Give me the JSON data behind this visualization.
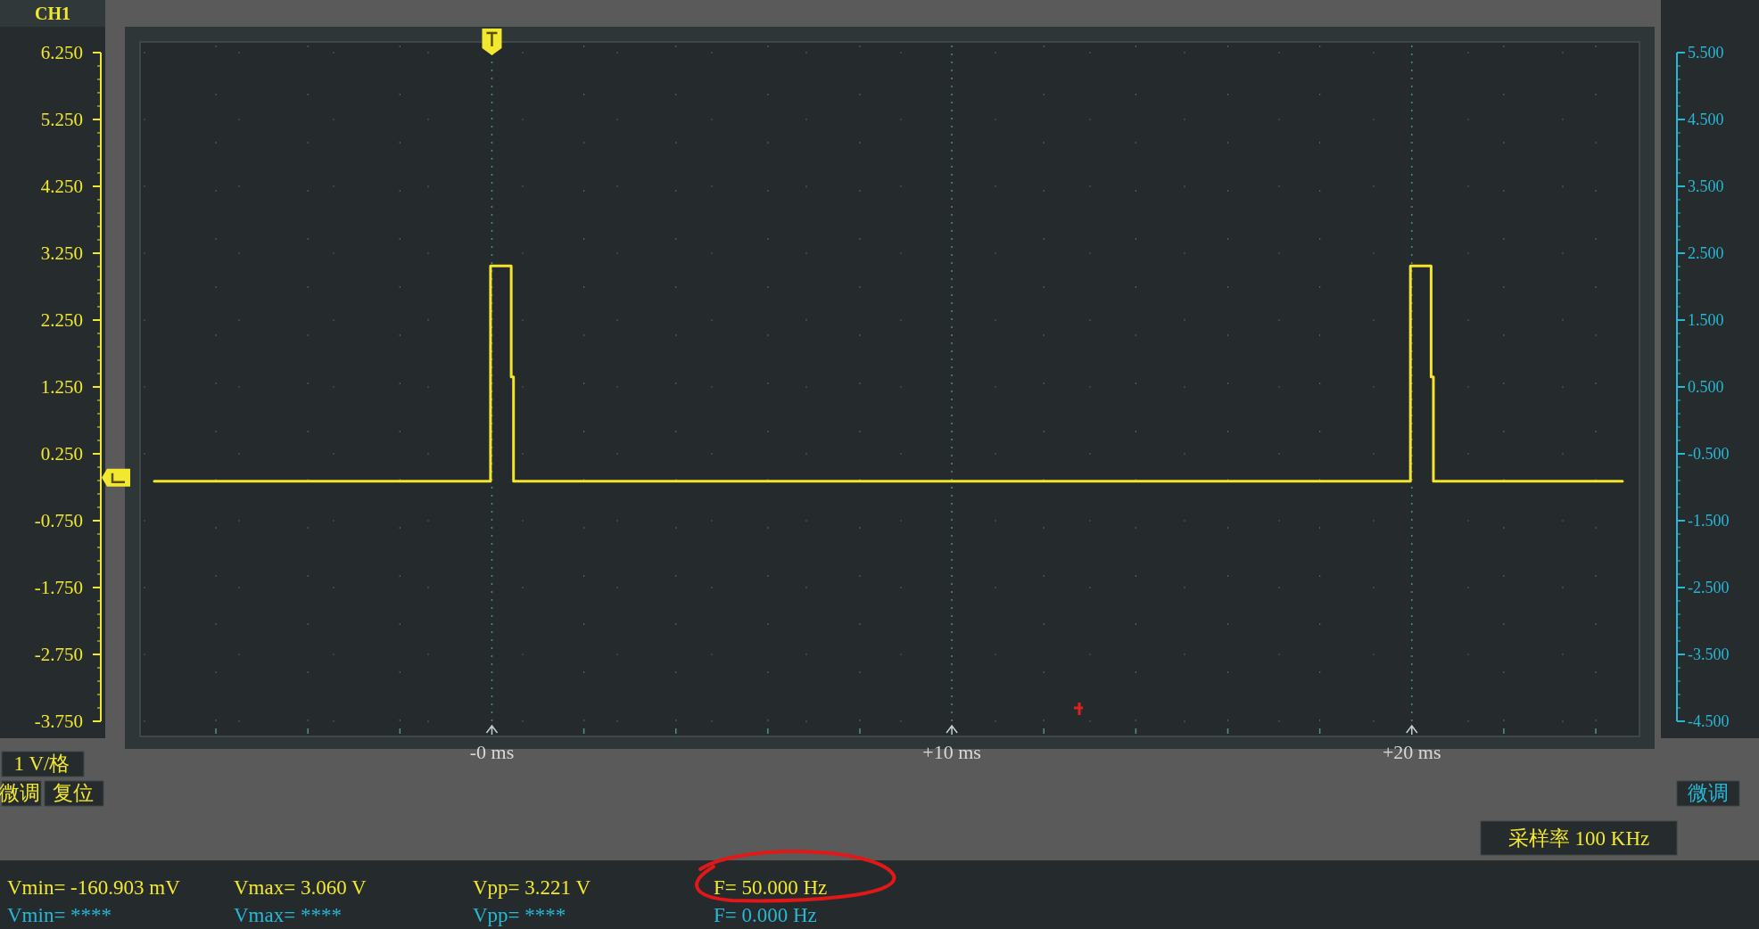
{
  "chart_data": {
    "type": "line",
    "ylabel": "CH1",
    "xlim": [
      -7.65,
      24.95
    ],
    "ylim": [
      -3.75,
      6.25
    ],
    "y2lim": [
      -4.5,
      5.5
    ],
    "xticks": [
      {
        "value": -6,
        "label": null
      },
      {
        "value": -4,
        "label": null
      },
      {
        "value": -2,
        "label": null
      },
      {
        "value": 0,
        "label": "-0 ms"
      },
      {
        "value": 2,
        "label": null
      },
      {
        "value": 4,
        "label": null
      },
      {
        "value": 6,
        "label": null
      },
      {
        "value": 8,
        "label": null
      },
      {
        "value": 10,
        "label": "+10 ms"
      },
      {
        "value": 12,
        "label": null
      },
      {
        "value": 14,
        "label": null
      },
      {
        "value": 16,
        "label": null
      },
      {
        "value": 18,
        "label": null
      },
      {
        "value": 20,
        "label": "+20 ms"
      },
      {
        "value": 22,
        "label": null
      },
      {
        "value": 24,
        "label": null
      }
    ],
    "yticks": [
      {
        "value": 6.25,
        "label": "6.250"
      },
      {
        "value": 5.25,
        "label": "5.250"
      },
      {
        "value": 4.25,
        "label": "4.250"
      },
      {
        "value": 3.25,
        "label": "3.250"
      },
      {
        "value": 2.25,
        "label": "2.250"
      },
      {
        "value": 1.25,
        "label": "1.250"
      },
      {
        "value": 0.25,
        "label": "0.250"
      },
      {
        "value": -0.75,
        "label": "-0.750"
      },
      {
        "value": -1.75,
        "label": "-1.750"
      },
      {
        "value": -2.75,
        "label": "-2.750"
      },
      {
        "value": -3.75,
        "label": "-3.750"
      }
    ],
    "y2ticks": [
      {
        "value": 5.5,
        "label": "5.500"
      },
      {
        "value": 4.5,
        "label": "4.500"
      },
      {
        "value": 3.5,
        "label": "3.500"
      },
      {
        "value": 2.5,
        "label": "2.500"
      },
      {
        "value": 1.5,
        "label": "1.500"
      },
      {
        "value": 0.5,
        "label": "0.500"
      },
      {
        "value": -0.5,
        "label": "-0.500"
      },
      {
        "value": -1.5,
        "label": "-1.500"
      },
      {
        "value": -2.5,
        "label": "-2.500"
      },
      {
        "value": -3.5,
        "label": "-3.500"
      },
      {
        "value": -4.5,
        "label": "-4.500"
      }
    ],
    "grid": true,
    "line_style": "solid",
    "series": [
      {
        "color": "#f5e52a",
        "x": [
          -7.34,
          -0.03,
          -0.03,
          0.42,
          0.42,
          0.47,
          0.47,
          19.97,
          19.97,
          20.42,
          20.42,
          20.47,
          20.47,
          24.58
        ],
        "values": [
          -0.16,
          -0.16,
          3.06,
          3.06,
          1.4,
          1.4,
          -0.16,
          -0.16,
          3.06,
          3.06,
          1.4,
          1.4,
          -0.16,
          -0.16
        ]
      }
    ],
    "annotations": [
      "1 V/格",
      "微调",
      "复位",
      "采样率 100 KHz",
      "Vmin= -160.903 mV",
      "Vmax= 3.060 V",
      "Vpp= 3.221 V",
      "F= 50.000 Hz",
      "Vmin= ****",
      "Vmax= ****",
      "Vpp= ****",
      "F= 0.000 Hz",
      "微调"
    ]
  }
}
